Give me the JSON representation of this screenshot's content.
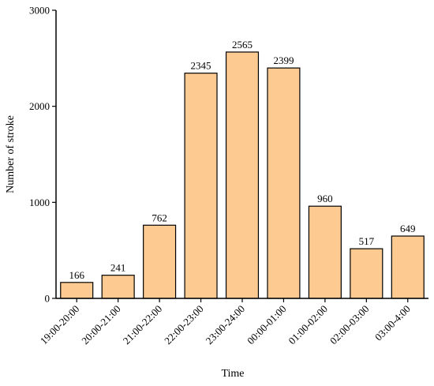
{
  "chart_data": {
    "type": "bar",
    "title": "",
    "xlabel": "Time",
    "ylabel": "Number of stroke",
    "categories": [
      "19:00-20:00",
      "20:00-21:00",
      "21:00-22:00",
      "22:00-23:00",
      "23:00-24:00",
      "00:00-01:00",
      "01:00-02:00",
      "02:00-03:00",
      "03:00-4:00"
    ],
    "values": [
      166,
      241,
      762,
      2345,
      2565,
      2399,
      960,
      517,
      649
    ],
    "data_labels": [
      "166",
      "241",
      "762",
      "2345",
      "2565",
      "2399",
      "960",
      "517",
      "649"
    ],
    "ylim": [
      0,
      3000
    ],
    "yticks": [
      0,
      1000,
      2000,
      3000
    ],
    "ytick_labels": [
      "0",
      "1000",
      "2000",
      "3000"
    ],
    "grid": false,
    "bar_color": "#fdcb92",
    "edge_color": "#000000"
  }
}
